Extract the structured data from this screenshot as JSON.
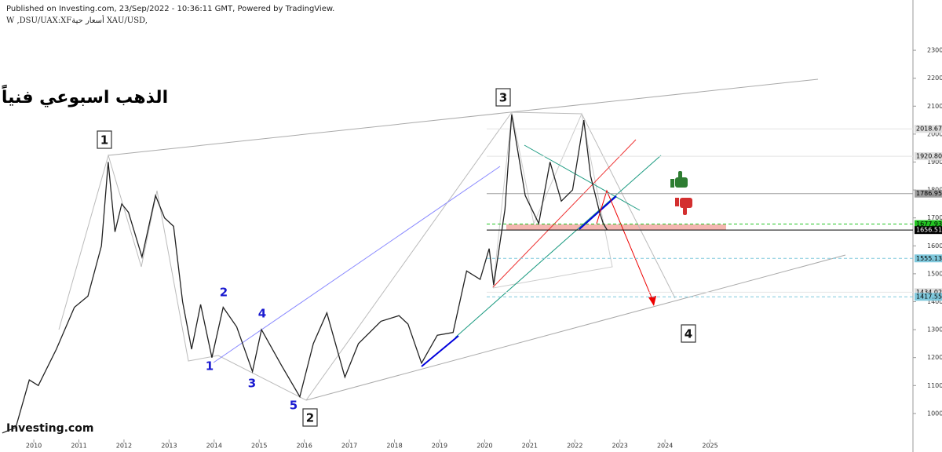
{
  "chart_data": {
    "type": "line",
    "header": [
      "Published on Investing.com, 23/Sep/2022 - 10:36:11 GMT, Powered by TradingView.",
      "W ,DSU/UAX:XFأسعار حية XAU/USD,"
    ],
    "title": "الذهب اسبوعي فنياً",
    "watermark": "Investing.com",
    "wave_labels": [
      "1",
      "3",
      "2",
      "4"
    ],
    "sub_wave_labels": [
      "2",
      "4",
      "1",
      "3",
      "5"
    ],
    "x": [
      2009.3,
      2009.6,
      2009.9,
      2010.1,
      2010.5,
      2010.9,
      2011.2,
      2011.5,
      2011.65,
      2011.8,
      2011.95,
      2012.1,
      2012.4,
      2012.7,
      2012.9,
      2013.1,
      2013.3,
      2013.5,
      2013.7,
      2013.95,
      2014.2,
      2014.5,
      2014.85,
      2015.05,
      2015.5,
      2015.9,
      2016.2,
      2016.5,
      2016.9,
      2017.2,
      2017.7,
      2018.1,
      2018.3,
      2018.6,
      2018.95,
      2019.3,
      2019.6,
      2019.9,
      2020.1,
      2020.2,
      2020.45,
      2020.6,
      2020.9,
      2021.2,
      2021.45,
      2021.7,
      2021.95,
      2022.2,
      2022.35,
      2022.55,
      2022.63,
      2022.72
    ],
    "series": [
      {
        "name": "XAU/USD",
        "color": "#222222",
        "values": [
          930,
          950,
          1120,
          1100,
          1230,
          1380,
          1420,
          1600,
          1900,
          1650,
          1750,
          1720,
          1560,
          1780,
          1700,
          1670,
          1400,
          1230,
          1390,
          1200,
          1380,
          1310,
          1150,
          1300,
          1170,
          1060,
          1250,
          1360,
          1130,
          1250,
          1330,
          1350,
          1320,
          1180,
          1280,
          1290,
          1510,
          1480,
          1590,
          1460,
          1730,
          2070,
          1780,
          1680,
          1900,
          1760,
          1800,
          2050,
          1850,
          1720,
          1680,
          1656
        ]
      }
    ],
    "xlim": [
      2009.25,
      2029.5
    ],
    "ylim": [
      907,
      2480
    ],
    "xticks": [
      2010,
      2011,
      2012,
      2013,
      2014,
      2015,
      2016,
      2017,
      2018,
      2019,
      2020,
      2021,
      2022,
      2023,
      2024,
      2025
    ],
    "yticks": [
      {
        "value": 1000,
        "label": "1000.00"
      },
      {
        "value": 1100,
        "label": "1100.00"
      },
      {
        "value": 1200,
        "label": "1200.00"
      },
      {
        "value": 1300,
        "label": "1300.00"
      },
      {
        "value": 1400,
        "label": "1400.00"
      },
      {
        "value": 1500,
        "label": "1500.00"
      },
      {
        "value": 1600,
        "label": "1600.00"
      },
      {
        "value": 1700,
        "label": "1700.00"
      },
      {
        "value": 1800,
        "label": "1800.00"
      },
      {
        "value": 1900,
        "label": "1900.00"
      },
      {
        "value": 2000,
        "label": "2000.00"
      },
      {
        "value": 2100,
        "label": "2100.00"
      },
      {
        "value": 2200,
        "label": "2200.00"
      },
      {
        "value": 2300,
        "label": "2300.00"
      }
    ],
    "levels": [
      {
        "value": 2018.67,
        "label": "2018.67",
        "color": "#dddddd"
      },
      {
        "value": 1920.8,
        "label": "1920.80",
        "color": "#dddddd"
      },
      {
        "value": 1786.95,
        "label": "1786.95",
        "color": "#9e9e9e"
      },
      {
        "value": 1677.93,
        "label": "1677.93",
        "color": "#22c422"
      },
      {
        "value": 1656.51,
        "label": "1656.51",
        "color": "#000000"
      },
      {
        "value": 1555.13,
        "label": "1555.13",
        "color": "#7fc8dc"
      },
      {
        "value": 1434.02,
        "label": "1434.02",
        "color": "#dddddd"
      },
      {
        "value": 1417.55,
        "label": "1417.55",
        "color": "#7fc8dc"
      }
    ]
  }
}
